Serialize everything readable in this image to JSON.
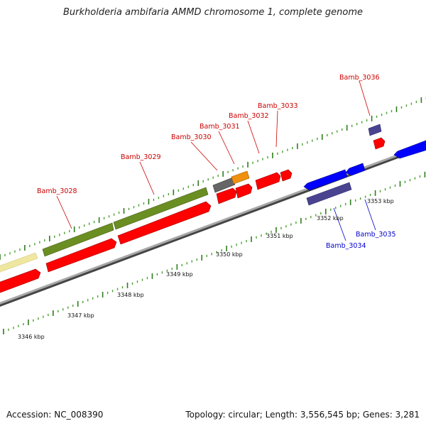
{
  "title": "Burkholderia ambifaria AMMD chromosome 1, complete genome",
  "footer": {
    "accession": "Accession: NC_008390",
    "topology": "Topology: circular; Length: 3,556,545 bp; Genes: 3,281"
  },
  "colors": {
    "axis": "#8c8c8c",
    "tick_major": "#2e7d1e",
    "tick_minor": "#4aa030",
    "label_red": "#cc0000",
    "label_blue": "#0000cc",
    "cds": "#ff0000",
    "blue": "#0000ff",
    "purple": "#4a4490",
    "olive": "#6b8e23",
    "yellow": "#efe7a0",
    "gray": "#666666",
    "orange": "#f0900c"
  },
  "scale": {
    "ticks": [
      {
        "label": "3346 kbp",
        "kbp": 3346
      },
      {
        "label": "3347 kbp",
        "kbp": 3347
      },
      {
        "label": "3348 kbp",
        "kbp": 3348
      },
      {
        "label": "3349 kbp",
        "kbp": 3349
      },
      {
        "label": "3350 kbp",
        "kbp": 3350
      },
      {
        "label": "3351 kbp",
        "kbp": 3351
      },
      {
        "label": "3352 kbp",
        "kbp": 3352
      },
      {
        "label": "3353 kbp",
        "kbp": 3353
      }
    ]
  },
  "gene_labels": [
    {
      "name": "Bamb_3028",
      "color": "label_red"
    },
    {
      "name": "Bamb_3029",
      "color": "label_red"
    },
    {
      "name": "Bamb_3030",
      "color": "label_red"
    },
    {
      "name": "Bamb_3031",
      "color": "label_red"
    },
    {
      "name": "Bamb_3032",
      "color": "label_red"
    },
    {
      "name": "Bamb_3033",
      "color": "label_red"
    },
    {
      "name": "Bamb_3036",
      "color": "label_red"
    },
    {
      "name": "Bamb_3034",
      "color": "label_blue"
    },
    {
      "name": "Bamb_3035",
      "color": "label_blue"
    }
  ]
}
